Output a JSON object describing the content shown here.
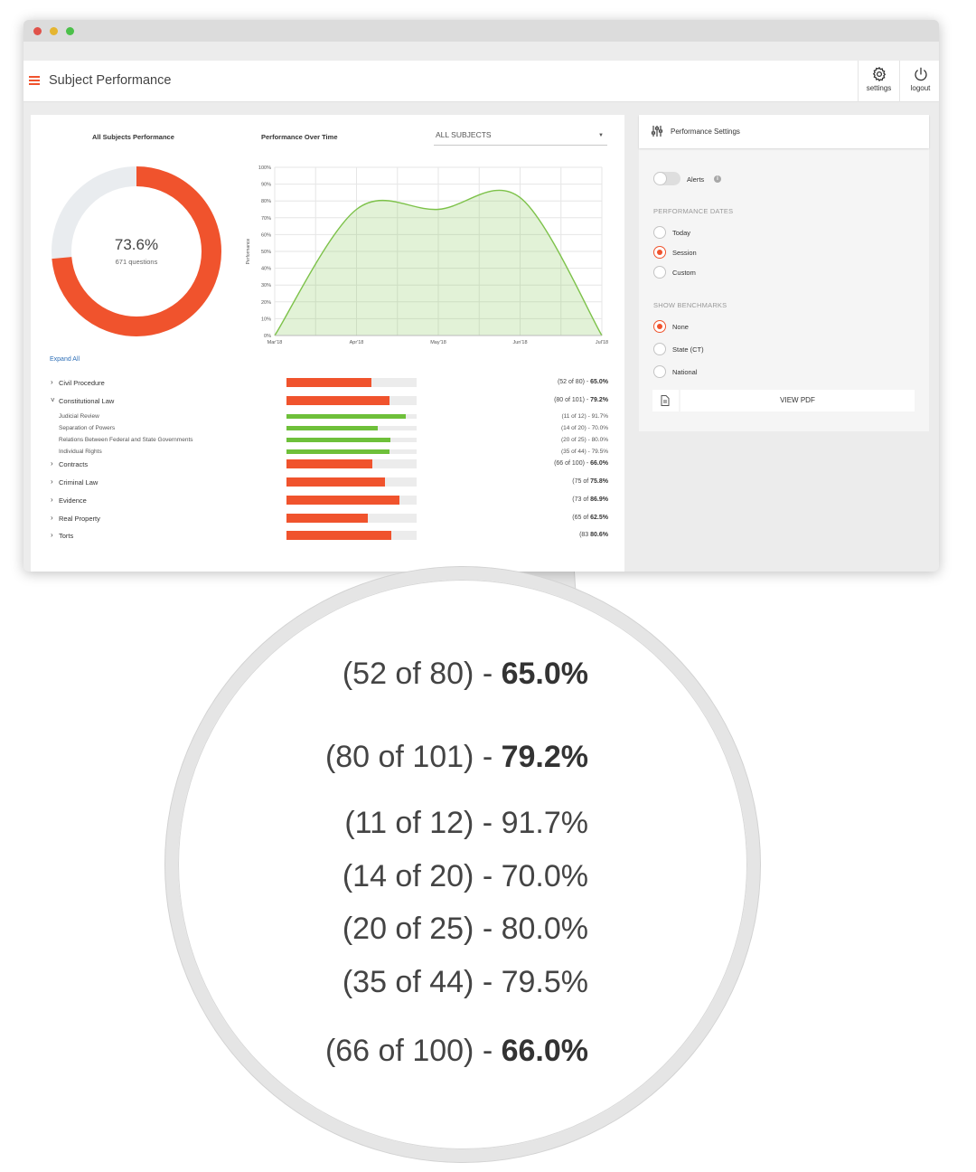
{
  "app": {
    "title": "Subject Performance",
    "settings_label": "settings",
    "logout_label": "logout"
  },
  "main": {
    "all_subjects_title": "All Subjects Performance",
    "over_time_title": "Performance Over Time",
    "subject_select": "ALL SUBJECTS",
    "donut_value": "73.6%",
    "donut_sub": "671 questions",
    "expand_all": "Expand All"
  },
  "chart_data": [
    {
      "type": "pie",
      "title": "All Subjects Performance",
      "values": [
        73.6,
        26.4
      ],
      "colors": [
        "#f0532d",
        "#e9ecef"
      ]
    },
    {
      "type": "area",
      "title": "Performance Over Time",
      "ylabel": "Performance",
      "y_ticks": [
        "100%",
        "90%",
        "80%",
        "70%",
        "60%",
        "50%",
        "40%",
        "30%",
        "20%",
        "10%",
        "0%"
      ],
      "x_ticks": [
        "Mar'18",
        "Apr'18",
        "May'18",
        "Jun'18",
        "Jul'18"
      ],
      "ylim": [
        0,
        100
      ],
      "x": [
        "Mar'18",
        "Apr'18",
        "May'18",
        "Jun'18",
        "Jul'18"
      ],
      "y": [
        0,
        75,
        75,
        82,
        0
      ],
      "color": "#7dc24a"
    }
  ],
  "subjects": [
    {
      "name": "Civil Procedure",
      "chevron": "›",
      "pct": 65.0,
      "score_prefix": "(52 of 80) - ",
      "score_pct": "65.0%",
      "sub": false
    },
    {
      "name": "Constitutional Law",
      "chevron": "˅",
      "pct": 79.2,
      "score_prefix": "(80 of 101) - ",
      "score_pct": "79.2%",
      "sub": false
    },
    {
      "name": "Judicial Review",
      "pct": 91.7,
      "score_prefix": "(11 of 12) - ",
      "score_pct": "91.7%",
      "sub": true
    },
    {
      "name": "Separation of Powers",
      "pct": 70.0,
      "score_prefix": "(14 of 20) - ",
      "score_pct": "70.0%",
      "sub": true
    },
    {
      "name": "Relations Between Federal and State Governments",
      "pct": 80.0,
      "score_prefix": "(20 of 25) - ",
      "score_pct": "80.0%",
      "sub": true
    },
    {
      "name": "Individual Rights",
      "pct": 79.5,
      "score_prefix": "(35 of 44) - ",
      "score_pct": "79.5%",
      "sub": true
    },
    {
      "name": "Contracts",
      "chevron": "›",
      "pct": 66.0,
      "score_prefix": "(66 of 100) - ",
      "score_pct": "66.0%",
      "sub": false
    },
    {
      "name": "Criminal Law",
      "chevron": "›",
      "pct": 75.8,
      "score_prefix": "(75 of ",
      "score_pct": "75.8%",
      "sub": false
    },
    {
      "name": "Evidence",
      "chevron": "›",
      "pct": 86.9,
      "score_prefix": "(73 of ",
      "score_pct": "86.9%",
      "sub": false
    },
    {
      "name": "Real Property",
      "chevron": "›",
      "pct": 62.5,
      "score_prefix": "(65 of ",
      "score_pct": "62.5%",
      "sub": false
    },
    {
      "name": "Torts",
      "chevron": "›",
      "pct": 80.6,
      "score_prefix": "(83 ",
      "score_pct": "80.6%",
      "sub": false
    }
  ],
  "settings_panel": {
    "title": "Performance Settings",
    "alerts_label": "Alerts",
    "alerts_on": false,
    "info_glyph": "i",
    "dates_caption": "PERFORMANCE DATES",
    "date_options": [
      {
        "label": "Today",
        "selected": false
      },
      {
        "label": "Session",
        "selected": true
      },
      {
        "label": "Custom",
        "selected": false
      }
    ],
    "bench_caption": "SHOW BENCHMARKS",
    "bench_options": [
      {
        "label": "None",
        "selected": true
      },
      {
        "label": "State (CT)",
        "selected": false
      },
      {
        "label": "National",
        "selected": false
      }
    ],
    "pdf_button": "VIEW PDF"
  },
  "magnifier": {
    "lines": [
      {
        "prefix": "(52 of 80) - ",
        "pct": "65.0%",
        "bold": true
      },
      {
        "prefix": "(80 of 101) - ",
        "pct": "79.2%",
        "bold": true
      },
      {
        "prefix": "(11 of 12) - ",
        "pct": "91.7%",
        "bold": false
      },
      {
        "prefix": "(14 of 20) - ",
        "pct": "70.0%",
        "bold": false
      },
      {
        "prefix": "(20 of 25) - ",
        "pct": "80.0%",
        "bold": false
      },
      {
        "prefix": "(35 of 44) - ",
        "pct": "79.5%",
        "bold": false
      },
      {
        "prefix": "(66 of 100) - ",
        "pct": "66.0%",
        "bold": true
      }
    ]
  },
  "colors": {
    "accent": "#f0532d",
    "green": "#6ec03a",
    "link": "#2e6fb7"
  }
}
